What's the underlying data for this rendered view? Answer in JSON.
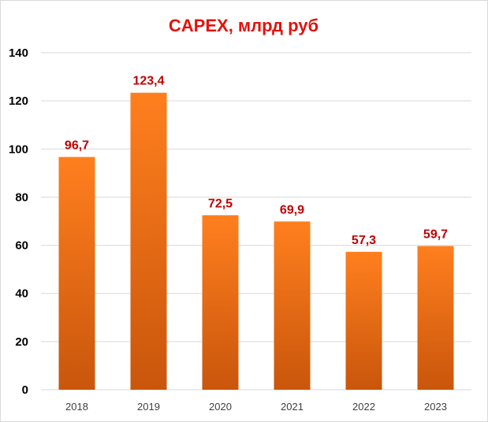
{
  "chart_data": {
    "type": "bar",
    "title": "CAPEX, млрд руб",
    "categories": [
      "2018",
      "2019",
      "2020",
      "2021",
      "2022",
      "2023"
    ],
    "values": [
      96.7,
      123.4,
      72.5,
      69.9,
      57.3,
      59.7
    ],
    "data_labels": [
      "96,7",
      "123,4",
      "72,5",
      "69,9",
      "57,3",
      "59,7"
    ],
    "ylim": [
      0,
      140
    ],
    "yticks": [
      "0",
      "20",
      "40",
      "60",
      "80",
      "100",
      "120",
      "140"
    ],
    "grid": true,
    "legend": "none",
    "colors": {
      "bar_top": "#ff7f1e",
      "bar_bottom": "#c9560c",
      "title": "#e3120b",
      "data_label": "#c00000",
      "grid": "#d9d9d9"
    }
  }
}
